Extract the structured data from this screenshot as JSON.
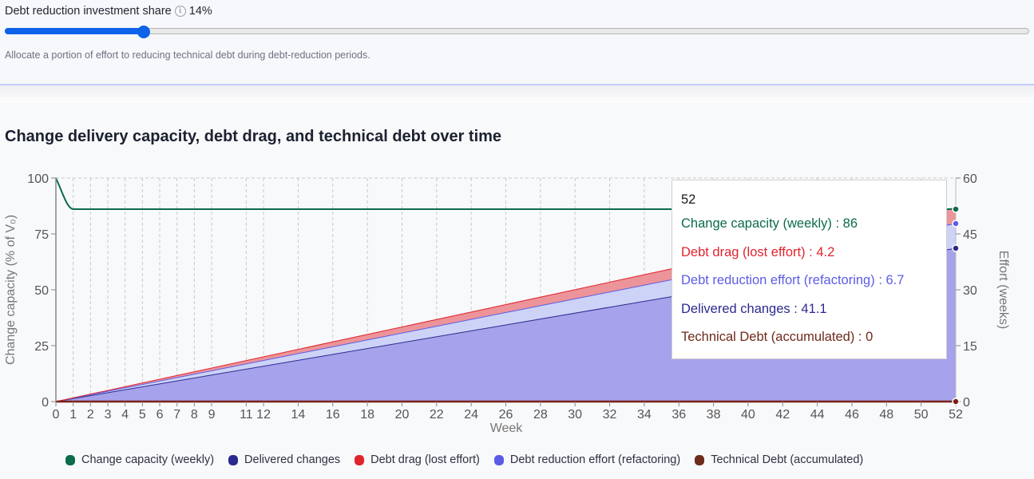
{
  "slider": {
    "label": "Debt reduction investment share",
    "info_icon": "i",
    "value_display": "14%",
    "value": 14,
    "min": 0,
    "max": 100,
    "helper_text": "Allocate a portion of effort to reducing technical debt during debt-reduction periods."
  },
  "chart": {
    "title": "Change delivery capacity, debt drag, and technical debt over time"
  },
  "tooltip": {
    "title": "52",
    "rows": [
      {
        "label": "Change capacity (weekly) : 86",
        "color": "#0b6b4a"
      },
      {
        "label": "Debt drag (lost effort) : 4.2",
        "color": "#e0242d"
      },
      {
        "label": "Debt reduction effort (refactoring) : 6.7",
        "color": "#5b5ce6"
      },
      {
        "label": "Delivered changes : 41.1",
        "color": "#2c2a8f"
      },
      {
        "label": "Technical Debt (accumulated) : 0",
        "color": "#6e2a1a"
      }
    ]
  },
  "legend": [
    {
      "label": "Change capacity (weekly)",
      "color": "#0b6b4a"
    },
    {
      "label": "Delivered changes",
      "color": "#2c2a8f"
    },
    {
      "label": "Debt drag (lost effort)",
      "color": "#e0242d"
    },
    {
      "label": "Debt reduction effort (refactoring)",
      "color": "#5b5ce6"
    },
    {
      "label": "Technical Debt (accumulated)",
      "color": "#6e2a1a"
    }
  ],
  "chart_data": {
    "type": "area",
    "title": "Change delivery capacity, debt drag, and technical debt over time",
    "xlabel": "Week",
    "ylabel": "Change capacity (% of V₀)",
    "y2label": "Effort (weeks)",
    "xlim": [
      0,
      52
    ],
    "ylim": [
      0,
      100
    ],
    "y2lim": [
      0,
      60
    ],
    "x_ticks": [
      "0",
      "1",
      "2",
      "3",
      "4",
      "5",
      "6",
      "7",
      "8",
      "9",
      "11",
      "12",
      "14",
      "16",
      "18",
      "20",
      "22",
      "24",
      "26",
      "28",
      "30",
      "32",
      "34",
      "36",
      "38",
      "40",
      "42",
      "44",
      "46",
      "48",
      "50",
      "52"
    ],
    "y_ticks": [
      "0",
      "25",
      "50",
      "75",
      "100"
    ],
    "y2_ticks": [
      "0",
      "15",
      "30",
      "45",
      "60"
    ],
    "grid": true,
    "legend_position": "bottom",
    "x": [
      0,
      1,
      52
    ],
    "series": [
      {
        "name": "Change capacity (weekly)",
        "axis": "left",
        "type": "line",
        "values": [
          100,
          86,
          86
        ]
      },
      {
        "name": "Delivered changes",
        "axis": "right",
        "type": "stacked-area",
        "values": [
          0,
          0.79,
          41.1
        ]
      },
      {
        "name": "Debt reduction effort (refactoring)",
        "axis": "right",
        "type": "stacked-area",
        "values": [
          0,
          0.13,
          6.7
        ]
      },
      {
        "name": "Debt drag (lost effort)",
        "axis": "right",
        "type": "stacked-area",
        "values": [
          0,
          0.08,
          4.2
        ]
      },
      {
        "name": "Technical Debt (accumulated)",
        "axis": "right",
        "type": "line",
        "values": [
          0,
          0,
          0
        ]
      }
    ],
    "hover": {
      "week": 52,
      "change_capacity": 86,
      "debt_drag": 4.2,
      "debt_reduction_effort": 6.7,
      "delivered_changes": 41.1,
      "technical_debt": 0
    }
  },
  "axes": {
    "ylabel": "Change capacity (% of V₀)",
    "y2label": "Effort (weeks)",
    "xlabel": "Week"
  }
}
